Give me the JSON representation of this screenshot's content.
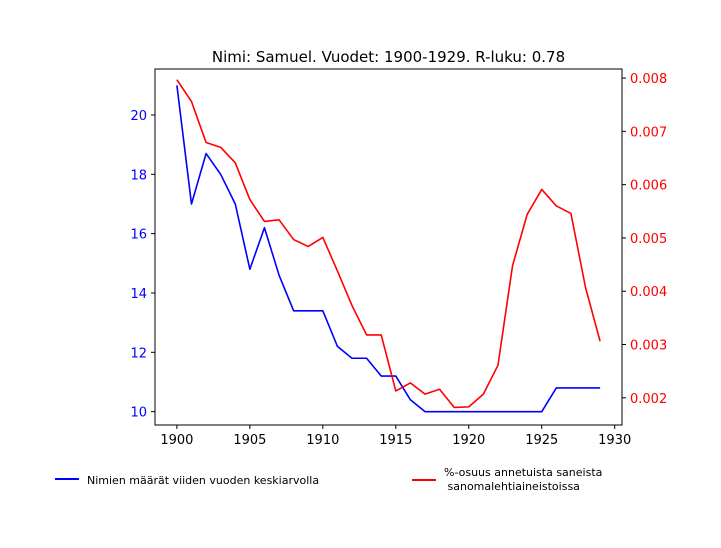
{
  "chart_data": {
    "type": "line",
    "title": "Nimi: Samuel. Vuodet: 1900-1929. R-luku: 0.78",
    "xlim": [
      1898.5,
      1930.5
    ],
    "x_ticks": [
      1900,
      1905,
      1910,
      1915,
      1920,
      1925,
      1930
    ],
    "x": [
      1900,
      1901,
      1902,
      1903,
      1904,
      1905,
      1906,
      1907,
      1908,
      1909,
      1910,
      1911,
      1912,
      1913,
      1914,
      1915,
      1916,
      1917,
      1918,
      1919,
      1920,
      1921,
      1922,
      1923,
      1924,
      1925,
      1926,
      1927,
      1928,
      1929
    ],
    "axes": {
      "left": {
        "ylim": [
          9.55,
          21.55
        ],
        "ticks": [
          10,
          12,
          14,
          16,
          18,
          20
        ],
        "color": "#0000ff"
      },
      "right": {
        "ylim": [
          0.00149,
          0.00817
        ],
        "ticks": [
          0.002,
          0.003,
          0.004,
          0.005,
          0.006,
          0.007,
          0.008
        ],
        "tick_decimals": 3,
        "color": "#ff0000"
      }
    },
    "series": [
      {
        "name": "Nimien määrät viiden vuoden keskiarvolla",
        "axis": "left",
        "color": "#0000ff",
        "values": [
          21.0,
          17.0,
          18.7,
          18.0,
          17.0,
          14.8,
          16.2,
          14.6,
          13.4,
          13.4,
          13.4,
          12.2,
          11.8,
          11.8,
          11.2,
          11.2,
          10.4,
          10.0,
          10.0,
          10.0,
          10.0,
          10.0,
          10.0,
          10.0,
          10.0,
          10.0,
          10.8,
          10.8,
          10.8,
          10.8
        ]
      },
      {
        "name": "%-osuus annetuista saneista\n sanomalehtiaineistoissa",
        "axis": "right",
        "color": "#ff0000",
        "values": [
          0.00797,
          0.00756,
          0.00679,
          0.0067,
          0.00641,
          0.00572,
          0.00531,
          0.00534,
          0.00497,
          0.00484,
          0.00501,
          0.00438,
          0.00373,
          0.00318,
          0.00318,
          0.00213,
          0.00228,
          0.00207,
          0.00216,
          0.00182,
          0.00183,
          0.00207,
          0.00261,
          0.00448,
          0.00544,
          0.00591,
          0.0056,
          0.00546,
          0.00407,
          0.00306
        ]
      }
    ],
    "legend": "bottom"
  }
}
